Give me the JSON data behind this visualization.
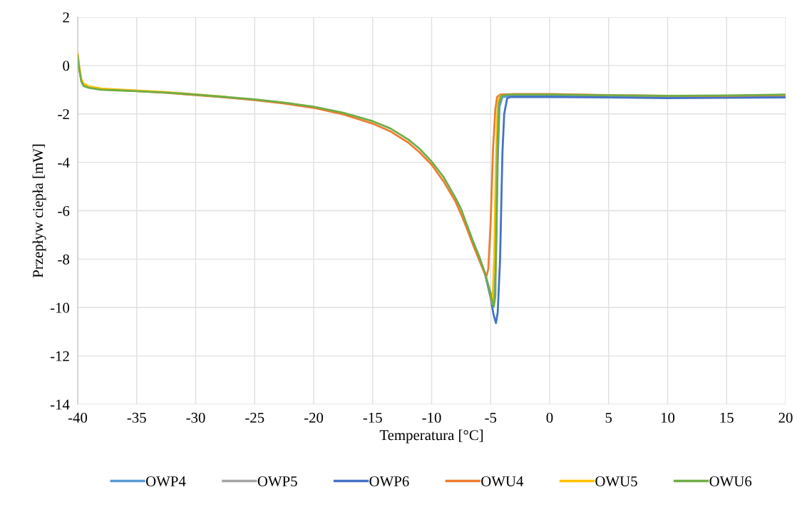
{
  "chart_data": {
    "type": "line",
    "xlabel": "Temperatura [°C]",
    "ylabel": "Przepływ ciepła [mW]",
    "xlim": [
      -40,
      20
    ],
    "xticks": [
      -40,
      -35,
      -30,
      -25,
      -20,
      -15,
      -10,
      -5,
      0,
      5,
      10,
      15,
      20
    ],
    "ylim": [
      -14,
      2
    ],
    "yticks": [
      -14,
      -12,
      -10,
      -8,
      -6,
      -4,
      -2,
      0,
      2
    ],
    "grid": true,
    "legend": "bottom",
    "marker": "none",
    "line_style": "solid",
    "series": [
      {
        "name": "OWP4",
        "color": "#5b9bd5",
        "x": [
          -5.5,
          -5,
          -4.75,
          -4.55,
          -4.4,
          -4.25,
          -4,
          -3,
          0,
          5,
          10,
          15,
          20
        ],
        "values": [
          -8.55,
          -9.4,
          -9.9,
          -8.0,
          -4.0,
          -1.7,
          -1.3,
          -1.25,
          -1.25,
          -1.28,
          -1.3,
          -1.3,
          -1.3
        ]
      },
      {
        "name": "OWP5",
        "color": "#a5a5a5"
      },
      {
        "name": "OWP6",
        "color": "#4472c4",
        "x": [
          -5.5,
          -5,
          -4.75,
          -4.55,
          -4.4,
          -4.2,
          -4,
          -3.85,
          -3.6,
          -3.3,
          0,
          5,
          10,
          15,
          20
        ],
        "values": [
          -8.55,
          -9.6,
          -10.3,
          -10.64,
          -10.2,
          -8.0,
          -3.6,
          -2.0,
          -1.35,
          -1.3,
          -1.3,
          -1.32,
          -1.35,
          -1.33,
          -1.32
        ]
      },
      {
        "name": "OWU4",
        "color": "#ed7d31",
        "x": [
          -40,
          -39.9,
          -39.7,
          -39.5,
          -39,
          -38,
          -37,
          -35,
          -32.5,
          -30,
          -27.5,
          -25,
          -22.5,
          -20,
          -17.5,
          -15,
          -13.5,
          -12,
          -11,
          -10,
          -9,
          -8,
          -7.5,
          -7,
          -6.5,
          -6,
          -5.5,
          -5.34,
          -5.2,
          -5,
          -4.8,
          -4.6,
          -4.45,
          -4.2,
          -3,
          0,
          5,
          10,
          15,
          20
        ],
        "values": [
          0.45,
          0.0,
          -0.6,
          -0.8,
          -0.9,
          -0.97,
          -1.0,
          -1.05,
          -1.13,
          -1.22,
          -1.32,
          -1.43,
          -1.57,
          -1.75,
          -2.02,
          -2.4,
          -2.72,
          -3.18,
          -3.6,
          -4.1,
          -4.78,
          -5.6,
          -6.15,
          -6.75,
          -7.4,
          -8.0,
          -8.6,
          -8.69,
          -8.4,
          -6.5,
          -3.5,
          -1.8,
          -1.3,
          -1.2,
          -1.18,
          -1.18,
          -1.22,
          -1.25,
          -1.25,
          -1.22
        ]
      },
      {
        "name": "OWU5",
        "color": "#ffc000",
        "x": [
          -40,
          -39.9,
          -39.7,
          -39.5,
          -39,
          -38,
          -37,
          -35,
          -32.5,
          -30,
          -27.5,
          -25,
          -22.5,
          -20,
          -17.5,
          -15,
          -13.5,
          -12,
          -11,
          -10,
          -9,
          -8,
          -7.5,
          -7,
          -6.5,
          -6,
          -5.5,
          -5,
          -4.85,
          -4.7,
          -4.55,
          -4.4,
          -4.2
        ],
        "values": [
          0.5,
          0.05,
          -0.55,
          -0.75,
          -0.87,
          -0.95,
          -0.98,
          -1.03,
          -1.1,
          -1.19,
          -1.29,
          null,
          null,
          null,
          null,
          null,
          null,
          null,
          null,
          null,
          null,
          null,
          null,
          null,
          null,
          null,
          null,
          -9.5,
          -9.85,
          -8.0,
          -4.0,
          -1.6,
          -1.25
        ]
      },
      {
        "name": "OWU6",
        "color": "#70ad47",
        "x": [
          -40,
          -39.9,
          -39.7,
          -39.5,
          -39,
          -38,
          -37,
          -35,
          -32.5,
          -30,
          -27.5,
          -25,
          -22.5,
          -20,
          -17.5,
          -15,
          -13.5,
          -12,
          -11,
          -10,
          -9,
          -8,
          -7.5,
          -7,
          -6.5,
          -6,
          -5.5,
          -5,
          -4.73,
          -4.6,
          -4.5,
          -4.4,
          -4.3,
          -4.1,
          -3.5,
          0,
          5,
          10,
          15,
          20
        ],
        "values": [
          0.4,
          -0.05,
          -0.65,
          -0.85,
          -0.93,
          -1.0,
          -1.02,
          -1.06,
          -1.12,
          -1.2,
          -1.3,
          -1.4,
          -1.53,
          -1.7,
          -1.95,
          -2.3,
          -2.6,
          -3.05,
          -3.45,
          -3.97,
          -4.6,
          -5.45,
          -5.93,
          -6.6,
          -7.25,
          -7.85,
          -8.55,
          -9.5,
          -9.97,
          -9.5,
          -6.0,
          -3.0,
          -1.6,
          -1.25,
          -1.2,
          -1.2,
          -1.23,
          -1.25,
          -1.24,
          -1.2
        ]
      }
    ]
  }
}
